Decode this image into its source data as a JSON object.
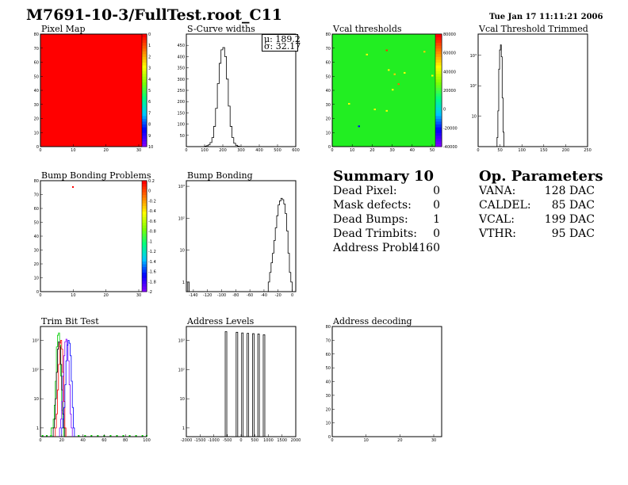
{
  "header": {
    "title": "M7691-10-3/FullTest.root_C11",
    "date": "Tue Jan 17 11:11:21 2006"
  },
  "colors": {
    "red": "#ff0000",
    "green": "#00ff00",
    "purple": "#7f00ff",
    "blue": "#0000ff",
    "black": "#000000"
  },
  "summary": {
    "title": "Summary",
    "count": "10",
    "rows": [
      {
        "label": "Dead Pixel:",
        "value": "0"
      },
      {
        "label": "Mask defects:",
        "value": "0"
      },
      {
        "label": "Dead Bumps:",
        "value": "1"
      },
      {
        "label": "Dead Trimbits:",
        "value": "0"
      },
      {
        "label": "Address Probl:",
        "value": "4160"
      }
    ]
  },
  "op_params": {
    "title": "Op. Parameters",
    "rows": [
      {
        "label": "VANA:",
        "value": "128 DAC"
      },
      {
        "label": "CALDEL:",
        "value": "85 DAC"
      },
      {
        "label": "VCAL:",
        "value": "199 DAC"
      },
      {
        "label": "VTHR:",
        "value": "95 DAC"
      }
    ]
  },
  "chart_data": [
    {
      "id": "pixel-map",
      "type": "heatmap",
      "title": "Pixel Map",
      "xlim": [
        0,
        32
      ],
      "ylim": [
        0,
        80
      ],
      "xticks": [
        "0",
        "10",
        "20",
        "30"
      ],
      "yticks": [
        "0",
        "10",
        "20",
        "30",
        "40",
        "50",
        "60",
        "70",
        "80"
      ],
      "zticks": [
        "0",
        "1",
        "2",
        "3",
        "4",
        "5",
        "6",
        "7",
        "8",
        "9",
        "10"
      ],
      "fill_value": 10
    },
    {
      "id": "scurve-widths",
      "type": "bar",
      "title": "S-Curve widths",
      "xlim": [
        0,
        600
      ],
      "ylim": [
        0,
        500
      ],
      "xticks": [
        "0",
        "100",
        "200",
        "300",
        "400",
        "500",
        "600"
      ],
      "yticks": [
        "50",
        "100",
        "150",
        "200",
        "250",
        "300",
        "350",
        "400",
        "450"
      ],
      "stats": {
        "mu": "189.2",
        "sigma": "32.17"
      },
      "bins": {
        "x0": 100,
        "width": 10,
        "values": [
          2,
          4,
          8,
          18,
          40,
          90,
          170,
          280,
          370,
          430,
          440,
          400,
          300,
          180,
          90,
          40,
          15,
          6,
          2,
          1
        ]
      }
    },
    {
      "id": "vcal-thresholds",
      "type": "heatmap",
      "title": "Vcal thresholds",
      "xlim": [
        0,
        52
      ],
      "ylim": [
        0,
        80
      ],
      "xticks": [
        "0",
        "10",
        "20",
        "30",
        "40",
        "50"
      ],
      "yticks": [
        "0",
        "10",
        "20",
        "30",
        "40",
        "50",
        "60",
        "70",
        "80"
      ],
      "zticks": [
        "80000",
        "60000",
        "40000",
        "20000",
        "0",
        "-20000",
        "-40000"
      ],
      "outliers": [
        {
          "x": 27,
          "y": 68,
          "color": "#ff3300"
        },
        {
          "x": 31,
          "y": 51,
          "color": "#ffcc00"
        },
        {
          "x": 33,
          "y": 44,
          "color": "#ff6600"
        },
        {
          "x": 13,
          "y": 14,
          "color": "#0000ff"
        },
        {
          "x": 46,
          "y": 67,
          "color": "#ffcc00"
        },
        {
          "x": 21,
          "y": 26,
          "color": "#ffff00"
        },
        {
          "x": 27,
          "y": 25,
          "color": "#ffff00"
        },
        {
          "x": 8,
          "y": 30,
          "color": "#ffff00"
        },
        {
          "x": 17,
          "y": 65,
          "color": "#ffff00"
        },
        {
          "x": 36,
          "y": 52,
          "color": "#ffff00"
        },
        {
          "x": 50,
          "y": 50,
          "color": "#ffff00"
        },
        {
          "x": 28,
          "y": 54,
          "color": "#ffff00"
        },
        {
          "x": 30,
          "y": 40,
          "color": "#ffff00"
        }
      ]
    },
    {
      "id": "vcal-threshold-trimmed",
      "type": "bar",
      "title": "Vcal Threshold Trimmed",
      "xlim": [
        0,
        255
      ],
      "ylim": [
        1,
        5000
      ],
      "log_y": true,
      "xticks": [
        "0",
        "50",
        "100",
        "150",
        "200",
        "250"
      ],
      "yticks": [
        "10",
        "10²",
        "10³"
      ],
      "bins": {
        "x0": 44,
        "width": 2,
        "values": [
          2,
          15,
          350,
          1500,
          2200,
          900,
          40,
          3
        ]
      }
    },
    {
      "id": "bump-bonding-problems",
      "type": "heatmap",
      "title": "Bump Bonding Problems",
      "xlim": [
        0,
        32
      ],
      "ylim": [
        0,
        80
      ],
      "xticks": [
        "0",
        "10",
        "20",
        "30"
      ],
      "yticks": [
        "0",
        "10",
        "20",
        "30",
        "40",
        "50",
        "60",
        "70",
        "80"
      ],
      "zticks": [
        "0.2",
        "0",
        "-0.2",
        "-0.4",
        "-0.6",
        "-0.8",
        "-1",
        "-1.2",
        "-1.4",
        "-1.6",
        "-1.8",
        "-2"
      ],
      "points": [
        {
          "x": 10,
          "y": 75,
          "color": "#ff0000"
        }
      ]
    },
    {
      "id": "bump-bonding",
      "type": "bar",
      "title": "Bump Bonding",
      "xlim": [
        -150,
        5
      ],
      "ylim": [
        0.5,
        1500
      ],
      "log_y": true,
      "xticks": [
        "-140",
        "-120",
        "-100",
        "-80",
        "-60",
        "-40",
        "-20",
        "0"
      ],
      "yticks": [
        "1",
        "10",
        "10²",
        "10³"
      ],
      "bins": {
        "x0": -148,
        "width": 2,
        "values": [
          1,
          0,
          0,
          0,
          0,
          0,
          0,
          0,
          0,
          0,
          0,
          0,
          0,
          0,
          0,
          0,
          0,
          0,
          0,
          0,
          0,
          0,
          0,
          0,
          0,
          0,
          0,
          0,
          0,
          0,
          0,
          0,
          0,
          0,
          0,
          0,
          0,
          0,
          0,
          0,
          0,
          0,
          0,
          0,
          0,
          0,
          0,
          0,
          0,
          0,
          0,
          0,
          0,
          0,
          0,
          0,
          0,
          1,
          2,
          4,
          8,
          20,
          50,
          120,
          260,
          350,
          420,
          380,
          280,
          140,
          40,
          8,
          2,
          1
        ]
      }
    },
    {
      "id": "trim-bit-test",
      "type": "line",
      "title": "Trim Bit Test",
      "xlim": [
        0,
        100
      ],
      "ylim": [
        0.5,
        3000
      ],
      "log_y": true,
      "xticks": [
        "0",
        "20",
        "40",
        "60",
        "80",
        "100"
      ],
      "yticks": [
        "1",
        "10",
        "10²",
        "10³"
      ],
      "series": [
        {
          "color": "#00cc00",
          "x0": 10,
          "width": 1,
          "values": [
            1,
            1,
            2,
            6,
            40,
            600,
            1500,
            1800,
            700,
            60,
            4,
            1
          ]
        },
        {
          "color": "#000000",
          "x0": 12,
          "width": 1,
          "values": [
            1,
            2,
            10,
            80,
            500,
            900,
            600,
            150,
            20,
            3,
            1
          ]
        },
        {
          "color": "#ff0000",
          "x0": 14,
          "width": 1,
          "values": [
            1,
            3,
            20,
            150,
            800,
            1000,
            500,
            80,
            8,
            1
          ]
        },
        {
          "color": "#7f00ff",
          "x0": 18,
          "width": 1,
          "values": [
            1,
            2,
            8,
            60,
            300,
            900,
            1100,
            700,
            200,
            30,
            3,
            1
          ]
        },
        {
          "color": "#0000ff",
          "x0": 20,
          "width": 1,
          "values": [
            1,
            2,
            5,
            30,
            200,
            700,
            1000,
            800,
            300,
            40,
            5,
            1
          ]
        }
      ],
      "baseline_points": {
        "color": "#00cc00",
        "x": [
          2,
          6,
          10,
          36,
          42,
          48,
          54,
          60,
          66,
          72,
          78,
          84,
          90,
          96,
          100
        ]
      }
    },
    {
      "id": "address-levels",
      "type": "bar",
      "title": "Address Levels",
      "xlim": [
        -2000,
        2000
      ],
      "ylim": [
        0.5,
        3000
      ],
      "log_y": true,
      "xticks": [
        "-2000",
        "-1500",
        "-1000",
        "-500",
        "0",
        "500",
        "1000",
        "1500",
        "2000"
      ],
      "yticks": [
        "1",
        "10",
        "10²",
        "10³"
      ],
      "spikes": [
        {
          "x": -550,
          "value": 2000
        },
        {
          "x": -150,
          "value": 1900
        },
        {
          "x": 50,
          "value": 1800
        },
        {
          "x": 250,
          "value": 1750
        },
        {
          "x": 450,
          "value": 1700
        },
        {
          "x": 640,
          "value": 1650
        },
        {
          "x": 840,
          "value": 1550
        }
      ]
    },
    {
      "id": "address-decoding",
      "type": "heatmap",
      "title": "Address decoding",
      "xlim": [
        0,
        32
      ],
      "ylim": [
        0,
        80
      ],
      "xticks": [
        "0",
        "10",
        "20",
        "30"
      ],
      "yticks": [
        "0",
        "10",
        "20",
        "30",
        "40",
        "50",
        "60",
        "70",
        "80"
      ],
      "points": []
    }
  ]
}
